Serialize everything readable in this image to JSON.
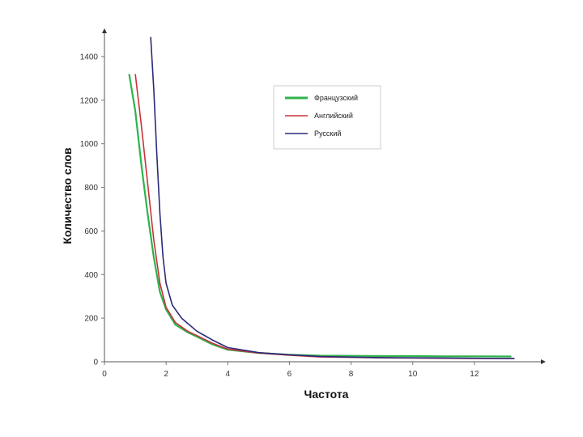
{
  "chart_data": {
    "type": "line",
    "title": "",
    "xlabel": "Частота",
    "ylabel": "Количество слов",
    "xlim": [
      0,
      14
    ],
    "ylim": [
      0,
      1500
    ],
    "xticks": [
      0,
      2,
      4,
      6,
      8,
      10,
      12
    ],
    "yticks": [
      0,
      200,
      400,
      600,
      800,
      1000,
      1200,
      1400
    ],
    "grid": false,
    "legend_position": "top-right",
    "series": [
      {
        "name": "Французский",
        "color": "#2db44a",
        "x": [
          0.8,
          1.0,
          1.2,
          1.4,
          1.6,
          1.8,
          2.0,
          2.3,
          2.7,
          3.0,
          3.5,
          4.0,
          5.0,
          6.0,
          7.0,
          8.0,
          9.0,
          10.0,
          11.0,
          12.0,
          13.2
        ],
        "y": [
          1320,
          1150,
          900,
          680,
          480,
          320,
          240,
          170,
          135,
          115,
          80,
          55,
          40,
          32,
          28,
          27,
          26,
          26,
          25,
          25,
          24
        ]
      },
      {
        "name": "Английский",
        "color": "#c8323c",
        "x": [
          1.0,
          1.2,
          1.4,
          1.6,
          1.8,
          2.0,
          2.3,
          2.7,
          3.0,
          3.5,
          4.0,
          5.0,
          6.0,
          7.0,
          8.0,
          9.0,
          10.0,
          11.0,
          12.0,
          13.3
        ],
        "y": [
          1320,
          1080,
          820,
          560,
          360,
          250,
          180,
          140,
          120,
          85,
          58,
          40,
          30,
          22,
          20,
          18,
          17,
          16,
          15,
          15
        ]
      },
      {
        "name": "Русский",
        "color": "#2a2a7a",
        "x": [
          1.5,
          1.6,
          1.7,
          1.8,
          1.9,
          2.0,
          2.2,
          2.5,
          3.0,
          3.5,
          4.0,
          5.0,
          6.0,
          7.0,
          8.0,
          9.0,
          10.0,
          11.0,
          12.0,
          13.3
        ],
        "y": [
          1490,
          1250,
          950,
          680,
          480,
          360,
          260,
          200,
          140,
          100,
          65,
          42,
          32,
          24,
          21,
          19,
          18,
          17,
          16,
          15
        ]
      }
    ]
  }
}
